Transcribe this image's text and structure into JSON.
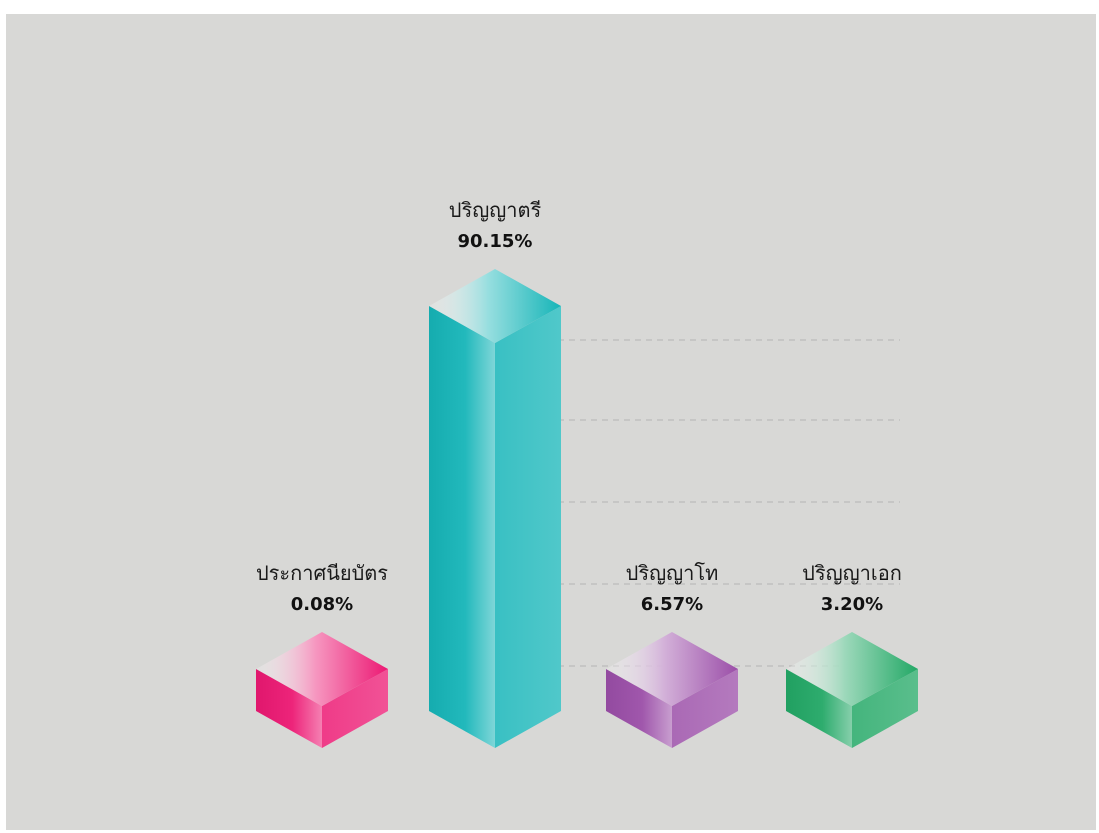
{
  "chart_data": {
    "type": "bar",
    "style": "3d-isometric-columns",
    "title": "",
    "xlabel": "",
    "ylabel": "",
    "grid": false,
    "legend": "none",
    "categories": [
      "ประกาศนียบัตร",
      "ปริญญาตรี",
      "ปริญญาโท",
      "ปริญญาเอก"
    ],
    "values": [
      0.08,
      90.15,
      6.57,
      3.2
    ],
    "value_labels": [
      "0.08%",
      "90.15%",
      "6.57%",
      "3.20%"
    ],
    "colors": [
      "#ec1873",
      "#16b5b8",
      "#9b4ea8",
      "#23a866"
    ],
    "background": "#d8d8d6"
  }
}
